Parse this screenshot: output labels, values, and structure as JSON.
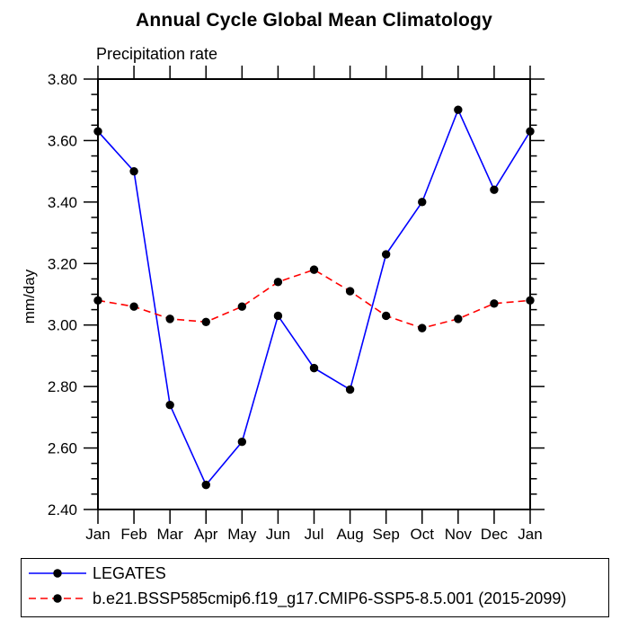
{
  "window": {
    "background": "#ffffff"
  },
  "chart_data": {
    "type": "line",
    "title": "Annual Cycle Global Mean Climatology",
    "subtitle": "Precipitation rate",
    "ylabel": "mm/day",
    "categories": [
      "Jan",
      "Feb",
      "Mar",
      "Apr",
      "May",
      "Jun",
      "Jul",
      "Aug",
      "Sep",
      "Oct",
      "Nov",
      "Dec",
      "Jan"
    ],
    "ylim": [
      2.4,
      3.8
    ],
    "ytick_major": 0.2,
    "ytick_minor": 0.05,
    "ytick_decimals": 2,
    "grid": false,
    "legend_position": "bottom-left-box",
    "axis_color": "#000000",
    "marker_color": "#000000",
    "series": [
      {
        "name": "LEGATES",
        "color": "#0000ff",
        "line_style": "solid",
        "marker": "filled-circle",
        "values": [
          3.63,
          3.5,
          2.74,
          2.48,
          2.62,
          3.03,
          2.86,
          2.79,
          3.23,
          3.4,
          3.7,
          3.44,
          3.63
        ]
      },
      {
        "name": "b.e21.BSSP585cmip6.f19_g17.CMIP6-SSP5-8.5.001 (2015-2099)",
        "color": "#ff0000",
        "line_style": "dashed",
        "marker": "filled-circle",
        "values": [
          3.08,
          3.06,
          3.02,
          3.01,
          3.06,
          3.14,
          3.18,
          3.11,
          3.03,
          2.99,
          3.02,
          3.07,
          3.08
        ]
      }
    ]
  }
}
